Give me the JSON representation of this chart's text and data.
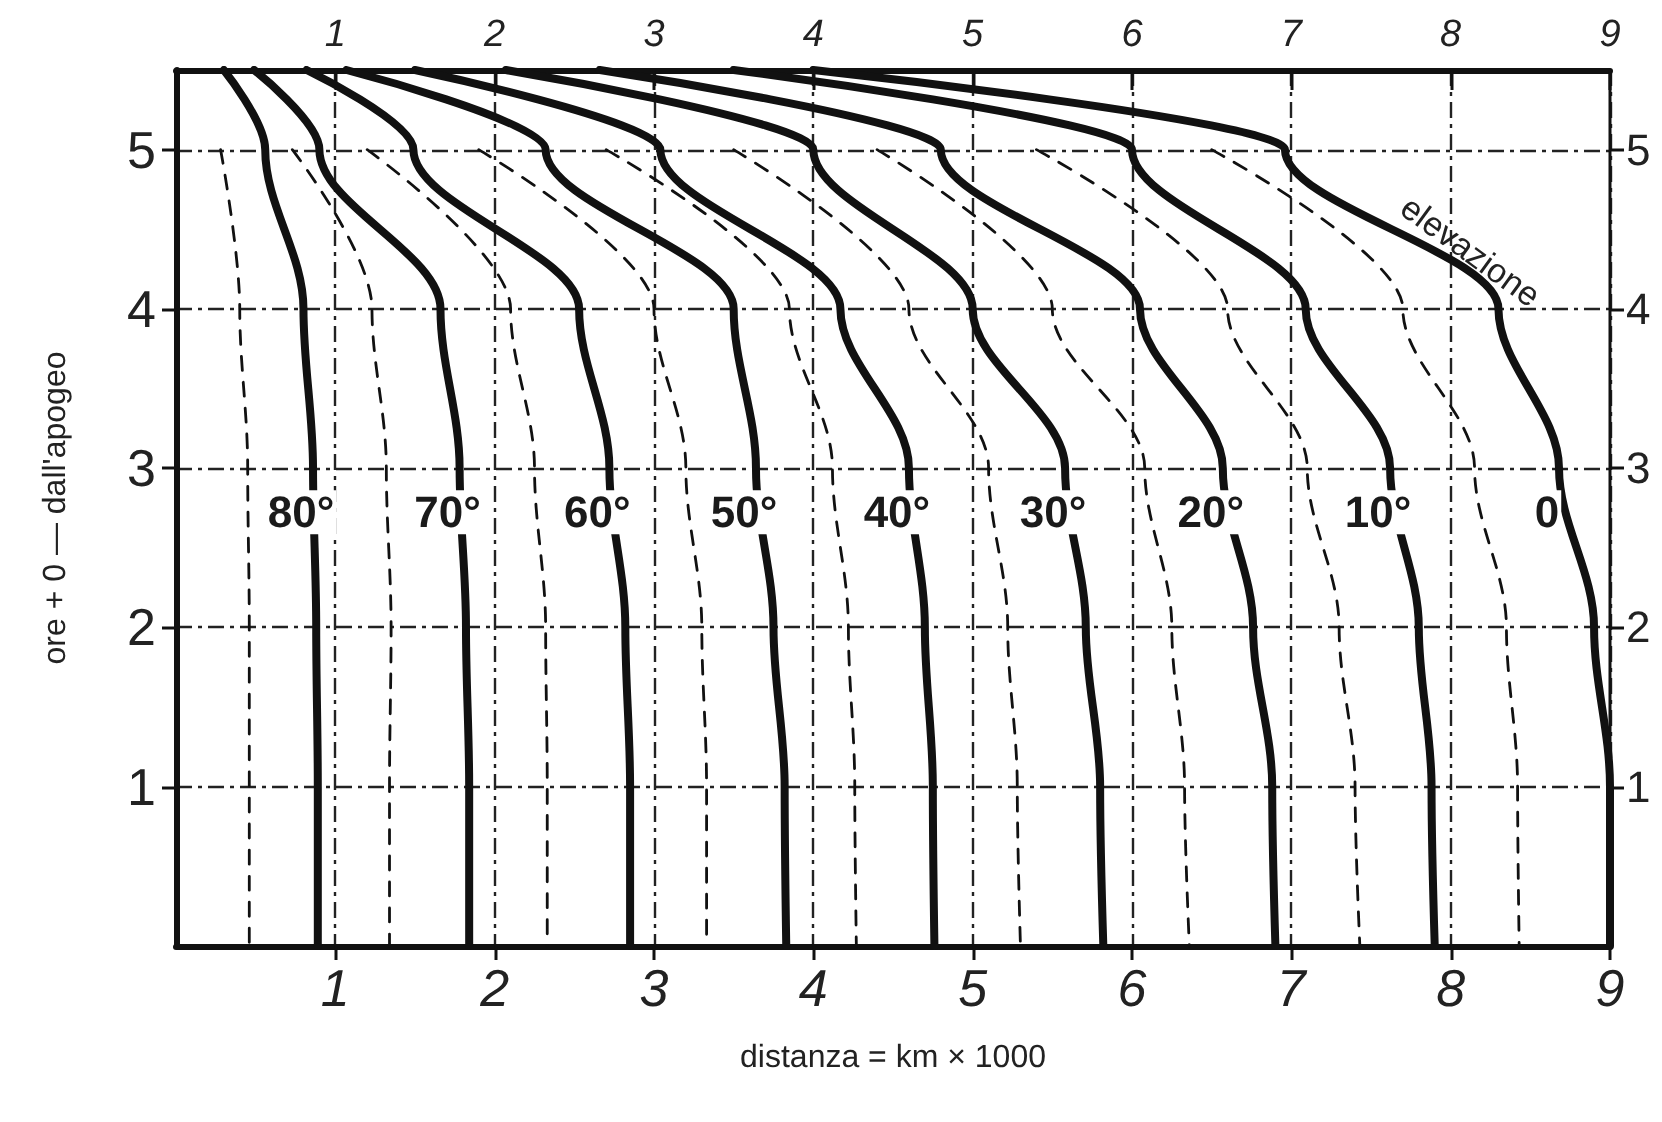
{
  "chart_data": {
    "type": "line",
    "xlabel": "distanza = km × 1000",
    "ylabel": "ore + 0 — dall'apogeo",
    "annotations": [
      "elevazione"
    ],
    "xlim": [
      0,
      9
    ],
    "xticks": [
      1,
      2,
      3,
      4,
      5,
      6,
      7,
      8,
      9
    ],
    "x2lim": [
      0,
      9
    ],
    "x2ticks": [
      1,
      2,
      3,
      4,
      5,
      6,
      7,
      8,
      9
    ],
    "ylim": [
      0,
      5.5
    ],
    "yticks": [
      1,
      2,
      3,
      4,
      5
    ],
    "y2lim": [
      0,
      5.5
    ],
    "y2ticks": [
      1,
      2,
      3,
      4,
      5
    ],
    "grid": true,
    "legend": false,
    "marker": "none",
    "series": [
      {
        "name": "80°",
        "color": "#111111",
        "line_style": "solid",
        "x": [
          0.3,
          0.56,
          0.8,
          0.86,
          0.88,
          0.89,
          0.89
        ],
        "values": [
          5.5,
          5,
          4,
          3,
          2,
          1,
          0
        ]
      },
      {
        "name": "70°",
        "color": "#111111",
        "line_style": "solid",
        "x": [
          0.49,
          0.9,
          1.66,
          1.78,
          1.82,
          1.84,
          1.84
        ],
        "values": [
          5.5,
          5,
          4,
          3,
          2,
          1,
          0
        ]
      },
      {
        "name": "60°",
        "color": "#111111",
        "line_style": "solid",
        "x": [
          0.82,
          1.49,
          2.53,
          2.72,
          2.82,
          2.85,
          2.85
        ],
        "values": [
          5.5,
          5,
          4,
          3,
          2,
          1,
          0
        ]
      },
      {
        "name": "50°",
        "color": "#111111",
        "line_style": "solid",
        "x": [
          1.07,
          2.32,
          3.5,
          3.64,
          3.75,
          3.82,
          3.83
        ],
        "values": [
          5.5,
          5,
          4,
          3,
          2,
          1,
          0
        ]
      },
      {
        "name": "40°",
        "color": "#111111",
        "line_style": "solid",
        "x": [
          1.5,
          3.04,
          4.17,
          4.6,
          4.7,
          4.75,
          4.76
        ],
        "values": [
          5.5,
          5,
          4,
          3,
          2,
          1,
          0
        ]
      },
      {
        "name": "30°",
        "color": "#111111",
        "line_style": "solid",
        "x": [
          2.07,
          4.0,
          5.0,
          5.58,
          5.71,
          5.8,
          5.82
        ],
        "values": [
          5.5,
          5,
          4,
          3,
          2,
          1,
          0
        ]
      },
      {
        "name": "20°",
        "color": "#111111",
        "line_style": "solid",
        "x": [
          2.66,
          4.8,
          6.05,
          6.57,
          6.76,
          6.88,
          6.9
        ],
        "values": [
          5.5,
          5,
          4,
          3,
          2,
          1,
          0
        ]
      },
      {
        "name": "10°",
        "color": "#111111",
        "line_style": "solid",
        "x": [
          3.5,
          6.0,
          7.09,
          7.62,
          7.8,
          7.88,
          7.9
        ],
        "values": [
          5.5,
          5,
          4,
          3,
          2,
          1,
          0
        ]
      },
      {
        "name": "0",
        "color": "#111111",
        "line_style": "solid",
        "x": [
          4.0,
          6.96,
          8.3,
          8.68,
          8.9,
          9.0,
          9.0
        ],
        "values": [
          5.5,
          5,
          4,
          3,
          2,
          1,
          0
        ]
      },
      {
        "color": "#111111",
        "line_style": "dashed",
        "x": [
          0.28,
          0.4,
          0.45,
          0.46,
          0.46,
          0.46
        ],
        "values": [
          5,
          4,
          3,
          2,
          1,
          0
        ]
      },
      {
        "color": "#111111",
        "line_style": "dashed",
        "x": [
          0.73,
          1.23,
          1.32,
          1.35,
          1.34,
          1.34
        ],
        "values": [
          5,
          4,
          3,
          2,
          1,
          0
        ]
      },
      {
        "color": "#111111",
        "line_style": "dashed",
        "x": [
          1.2,
          2.1,
          2.25,
          2.32,
          2.33,
          2.33
        ],
        "values": [
          5,
          4,
          3,
          2,
          1,
          0
        ]
      },
      {
        "color": "#111111",
        "line_style": "dashed",
        "x": [
          1.9,
          3.0,
          3.2,
          3.3,
          3.33,
          3.33
        ],
        "values": [
          5,
          4,
          3,
          2,
          1,
          0
        ]
      },
      {
        "color": "#111111",
        "line_style": "dashed",
        "x": [
          2.7,
          3.85,
          4.12,
          4.22,
          4.26,
          4.27
        ],
        "values": [
          5,
          4,
          3,
          2,
          1,
          0
        ]
      },
      {
        "color": "#111111",
        "line_style": "dashed",
        "x": [
          3.5,
          4.6,
          5.1,
          5.22,
          5.28,
          5.3
        ],
        "values": [
          5,
          4,
          3,
          2,
          1,
          0
        ]
      },
      {
        "color": "#111111",
        "line_style": "dashed",
        "x": [
          4.4,
          5.5,
          6.08,
          6.25,
          6.33,
          6.36
        ],
        "values": [
          5,
          4,
          3,
          2,
          1,
          0
        ]
      },
      {
        "color": "#111111",
        "line_style": "dashed",
        "x": [
          5.4,
          6.6,
          7.1,
          7.3,
          7.4,
          7.43
        ],
        "values": [
          5,
          4,
          3,
          2,
          1,
          0
        ]
      },
      {
        "color": "#111111",
        "line_style": "dashed",
        "x": [
          6.5,
          7.7,
          8.15,
          8.35,
          8.42,
          8.43
        ],
        "values": [
          5,
          4,
          3,
          2,
          1,
          0
        ]
      }
    ]
  }
}
